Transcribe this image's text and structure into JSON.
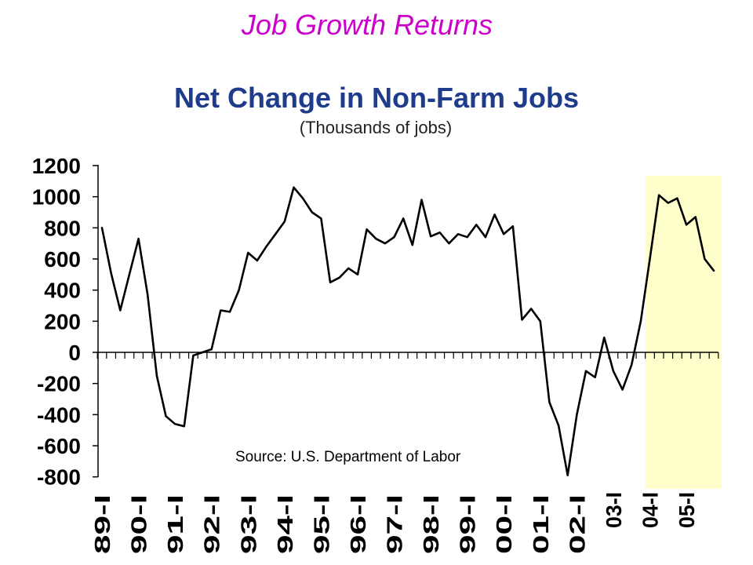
{
  "slide_title": "Job Growth Returns",
  "colors": {
    "slide_title": "#CC00CC",
    "chart_title": "#1F3C8C",
    "highlight": "#FFFFCC",
    "series_line": "#000000"
  },
  "chart_data": {
    "type": "line",
    "title": "Net Change in Non-Farm Jobs",
    "subtitle": "(Thousands of jobs)",
    "annotation": "Source: U.S. Department of Labor",
    "ylim": [
      -800,
      1200
    ],
    "yticks": [
      1200,
      1000,
      800,
      600,
      400,
      200,
      0,
      -200,
      -400,
      -600,
      -800
    ],
    "x_tick_labels": [
      "89-I",
      "90-I",
      "91-I",
      "92-I",
      "93-I",
      "94-I",
      "95-I",
      "96-I",
      "97-I",
      "98-I",
      "99-I",
      "00-I",
      "01-I",
      "02-I",
      "03-I",
      "04-I",
      "05-I"
    ],
    "values": [
      800,
      510,
      270,
      500,
      730,
      370,
      -150,
      -410,
      -460,
      -475,
      -20,
      0,
      20,
      270,
      260,
      400,
      640,
      590,
      680,
      760,
      840,
      1060,
      990,
      900,
      860,
      450,
      480,
      540,
      500,
      790,
      730,
      700,
      740,
      860,
      690,
      980,
      745,
      770,
      700,
      760,
      740,
      820,
      740,
      885,
      760,
      810,
      210,
      280,
      200,
      -320,
      -470,
      -790,
      -400,
      -120,
      -160,
      95,
      -120,
      -240,
      -80,
      200,
      600,
      1010,
      960,
      990,
      820,
      870,
      600,
      525
    ],
    "highlight_from": "04-I",
    "grid": false
  }
}
